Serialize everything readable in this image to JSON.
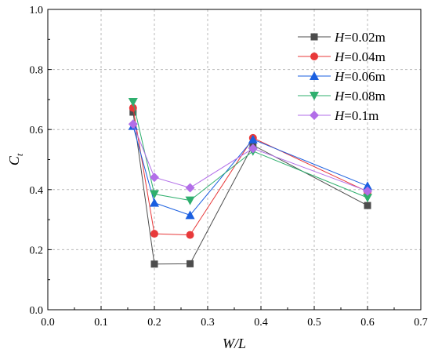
{
  "chart_data": {
    "type": "line",
    "xlabel": "W/L",
    "ylabel_main": "C",
    "ylabel_sub": "t",
    "xlim": [
      0.0,
      0.7
    ],
    "ylim": [
      0.0,
      1.0
    ],
    "xticks": [
      "0.0",
      "0.1",
      "0.2",
      "0.3",
      "0.4",
      "0.5",
      "0.6",
      "0.7"
    ],
    "yticks": [
      "0.0",
      "0.2",
      "0.4",
      "0.6",
      "0.8",
      "1.0"
    ],
    "grid": true,
    "legend_position": "top-right",
    "x": [
      0.16,
      0.2,
      0.267,
      0.385,
      0.6
    ],
    "series": [
      {
        "name_var": "H",
        "name_rest": "=0.02m",
        "color": "#4d4d4d",
        "marker": "square",
        "values": [
          0.658,
          0.152,
          0.153,
          0.548,
          0.347
        ]
      },
      {
        "name_var": "H",
        "name_rest": "=0.04m",
        "color": "#e8393a",
        "marker": "circle",
        "values": [
          0.672,
          0.253,
          0.249,
          0.572,
          0.393
        ]
      },
      {
        "name_var": "H",
        "name_rest": "=0.06m",
        "color": "#1a5fe0",
        "marker": "triangle-up",
        "values": [
          0.612,
          0.356,
          0.315,
          0.567,
          0.412
        ]
      },
      {
        "name_var": "H",
        "name_rest": "=0.08m",
        "color": "#2faf6e",
        "marker": "triangle-down",
        "values": [
          0.692,
          0.385,
          0.364,
          0.528,
          0.373
        ]
      },
      {
        "name_var": "H",
        "name_rest": "=0.1m",
        "color": "#b26ee8",
        "marker": "diamond",
        "values": [
          0.618,
          0.441,
          0.406,
          0.537,
          0.395
        ]
      }
    ]
  }
}
